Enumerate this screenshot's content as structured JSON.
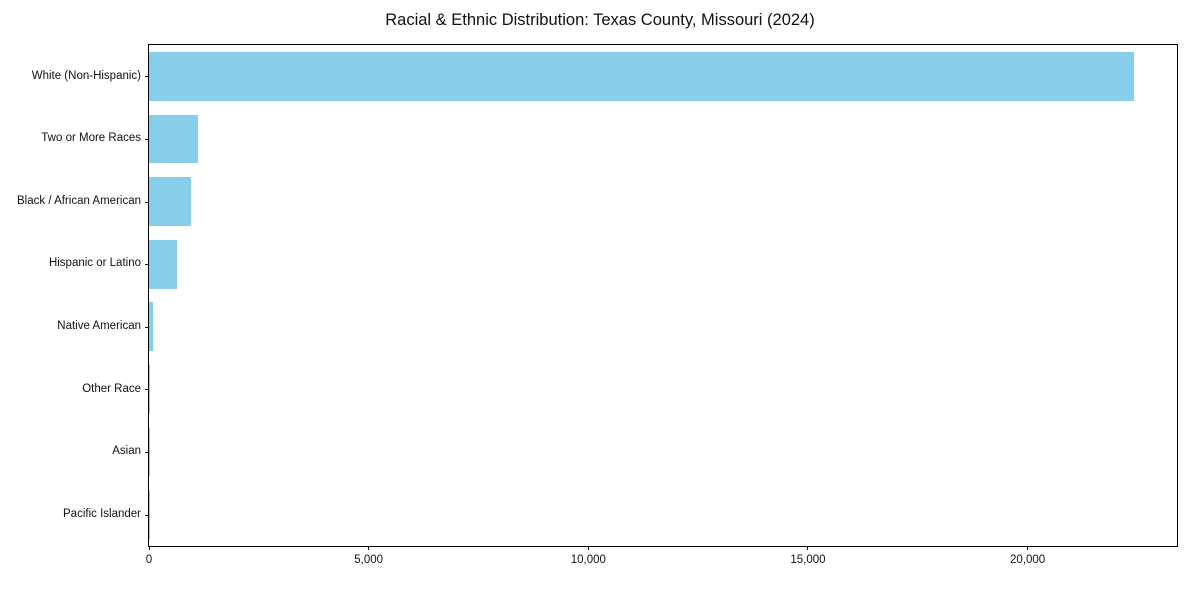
{
  "chart_data": {
    "type": "bar",
    "orientation": "horizontal",
    "title": "Racial & Ethnic Distribution: Texas County, Missouri (2024)",
    "categories": [
      "White (Non-Hispanic)",
      "Two or More Races",
      "Black / African American",
      "Hispanic or Latino",
      "Native American",
      "Other Race",
      "Asian",
      "Pacific Islander"
    ],
    "values": [
      22430,
      1110,
      950,
      640,
      80,
      25,
      15,
      5
    ],
    "xlabel": "",
    "ylabel": "",
    "xlim": [
      0,
      23400
    ],
    "xticks": [
      0,
      5000,
      10000,
      15000,
      20000
    ],
    "xtick_labels": [
      "0",
      "5,000",
      "10,000",
      "15,000",
      "20,000"
    ],
    "bar_color": "#87CEEB",
    "grid": false,
    "legend": false,
    "plot_border_color": "#000000"
  }
}
